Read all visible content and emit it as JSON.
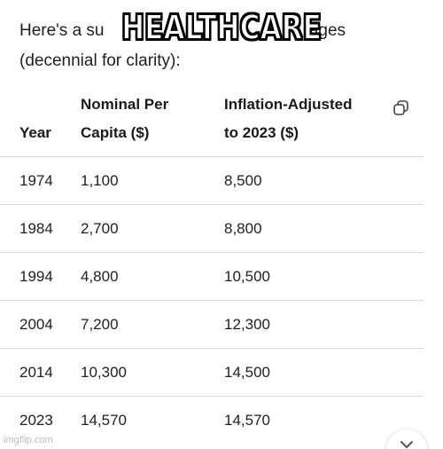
{
  "intro": {
    "text_before": "Here's a su",
    "text_after": "rages",
    "line2": "(decennial for clarity):"
  },
  "caption": "HEALTHCARE",
  "table": {
    "headers": {
      "year": "Year",
      "nominal_line1": "Nominal Per",
      "nominal_line2": "Capita ($)",
      "adjusted_line1": "Inflation-Adjusted",
      "adjusted_line2": "to 2023 ($)"
    },
    "rows": [
      {
        "year": "1974",
        "nominal": "1,100",
        "adjusted": "8,500"
      },
      {
        "year": "1984",
        "nominal": "2,700",
        "adjusted": "8,800"
      },
      {
        "year": "1994",
        "nominal": "4,800",
        "adjusted": "10,500"
      },
      {
        "year": "2004",
        "nominal": "7,200",
        "adjusted": "12,300"
      },
      {
        "year": "2014",
        "nominal": "10,300",
        "adjusted": "14,500"
      },
      {
        "year": "2023",
        "nominal": "14,570",
        "adjusted": "14,570"
      }
    ]
  },
  "icons": {
    "copy": "copy-icon",
    "scroll": "chevron-down-icon"
  },
  "watermark": "imgflip.com"
}
